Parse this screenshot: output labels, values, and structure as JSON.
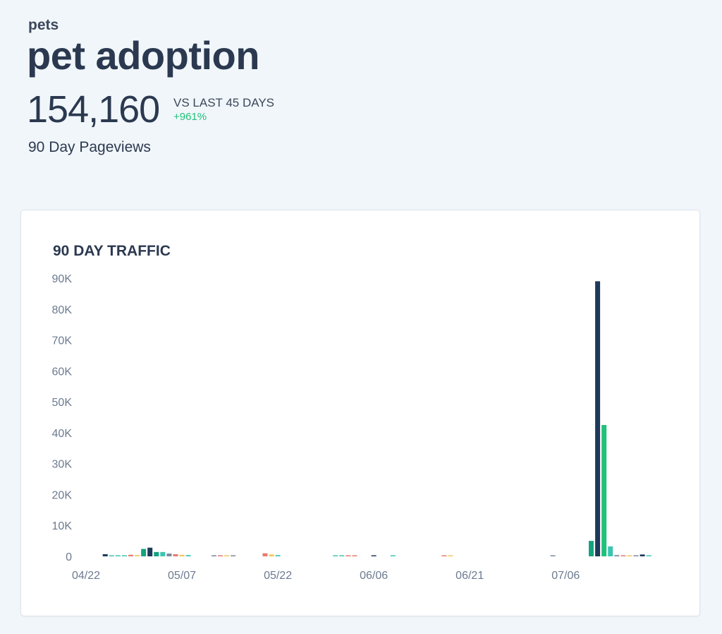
{
  "header": {
    "category": "pets",
    "title": "pet adoption",
    "total": "154,160",
    "compare_label": "VS LAST 45 DAYS",
    "compare_change": "+961%",
    "metric_label": "90 Day Pageviews"
  },
  "card": {
    "title": "90 DAY TRAFFIC"
  },
  "colors": {
    "navy": "#1d3a5a",
    "green": "#21c17a",
    "teal": "#14a37f",
    "aqua": "#3cc5b0",
    "coral": "#e87a6f",
    "gold": "#f4c55b",
    "slate": "#7b8a9e",
    "grid_text": "#6c7a90"
  },
  "chart_data": {
    "type": "bar",
    "ylim": [
      0,
      90000
    ],
    "y_ticks": [
      "90K",
      "80K",
      "70K",
      "60K",
      "50K",
      "40K",
      "30K",
      "20K",
      "10K",
      "0"
    ],
    "y_tick_values": [
      90000,
      80000,
      70000,
      60000,
      50000,
      40000,
      30000,
      20000,
      10000,
      0
    ],
    "x_ticks": [
      "04/22",
      "05/07",
      "05/22",
      "06/06",
      "06/21",
      "07/06"
    ],
    "x_tick_days": [
      0,
      15,
      30,
      45,
      60,
      75
    ],
    "bars": [
      {
        "day": 3,
        "value": 700,
        "color": "navy"
      },
      {
        "day": 4,
        "value": 300,
        "color": "aqua"
      },
      {
        "day": 5,
        "value": 300,
        "color": "aqua"
      },
      {
        "day": 6,
        "value": 300,
        "color": "aqua"
      },
      {
        "day": 7,
        "value": 500,
        "color": "coral"
      },
      {
        "day": 8,
        "value": 400,
        "color": "gold"
      },
      {
        "day": 9,
        "value": 2400,
        "color": "teal"
      },
      {
        "day": 10,
        "value": 2800,
        "color": "navy"
      },
      {
        "day": 11,
        "value": 1400,
        "color": "teal"
      },
      {
        "day": 12,
        "value": 1400,
        "color": "aqua"
      },
      {
        "day": 13,
        "value": 900,
        "color": "slate"
      },
      {
        "day": 14,
        "value": 700,
        "color": "coral"
      },
      {
        "day": 15,
        "value": 500,
        "color": "gold"
      },
      {
        "day": 16,
        "value": 400,
        "color": "aqua"
      },
      {
        "day": 20,
        "value": 200,
        "color": "slate"
      },
      {
        "day": 21,
        "value": 200,
        "color": "coral"
      },
      {
        "day": 22,
        "value": 200,
        "color": "gold"
      },
      {
        "day": 23,
        "value": 200,
        "color": "slate"
      },
      {
        "day": 28,
        "value": 1000,
        "color": "coral"
      },
      {
        "day": 29,
        "value": 600,
        "color": "gold"
      },
      {
        "day": 30,
        "value": 400,
        "color": "aqua"
      },
      {
        "day": 39,
        "value": 200,
        "color": "aqua"
      },
      {
        "day": 40,
        "value": 200,
        "color": "aqua"
      },
      {
        "day": 41,
        "value": 200,
        "color": "coral"
      },
      {
        "day": 42,
        "value": 200,
        "color": "coral"
      },
      {
        "day": 45,
        "value": 200,
        "color": "navy"
      },
      {
        "day": 48,
        "value": 150,
        "color": "aqua"
      },
      {
        "day": 56,
        "value": 200,
        "color": "coral"
      },
      {
        "day": 57,
        "value": 150,
        "color": "gold"
      },
      {
        "day": 73,
        "value": 150,
        "color": "slate"
      },
      {
        "day": 79,
        "value": 5000,
        "color": "teal"
      },
      {
        "day": 80,
        "value": 89000,
        "color": "navy"
      },
      {
        "day": 81,
        "value": 42500,
        "color": "green"
      },
      {
        "day": 82,
        "value": 3200,
        "color": "aqua"
      },
      {
        "day": 83,
        "value": 400,
        "color": "slate"
      },
      {
        "day": 84,
        "value": 300,
        "color": "coral"
      },
      {
        "day": 85,
        "value": 300,
        "color": "gold"
      },
      {
        "day": 86,
        "value": 300,
        "color": "slate"
      },
      {
        "day": 87,
        "value": 600,
        "color": "navy"
      },
      {
        "day": 88,
        "value": 200,
        "color": "aqua"
      }
    ]
  }
}
